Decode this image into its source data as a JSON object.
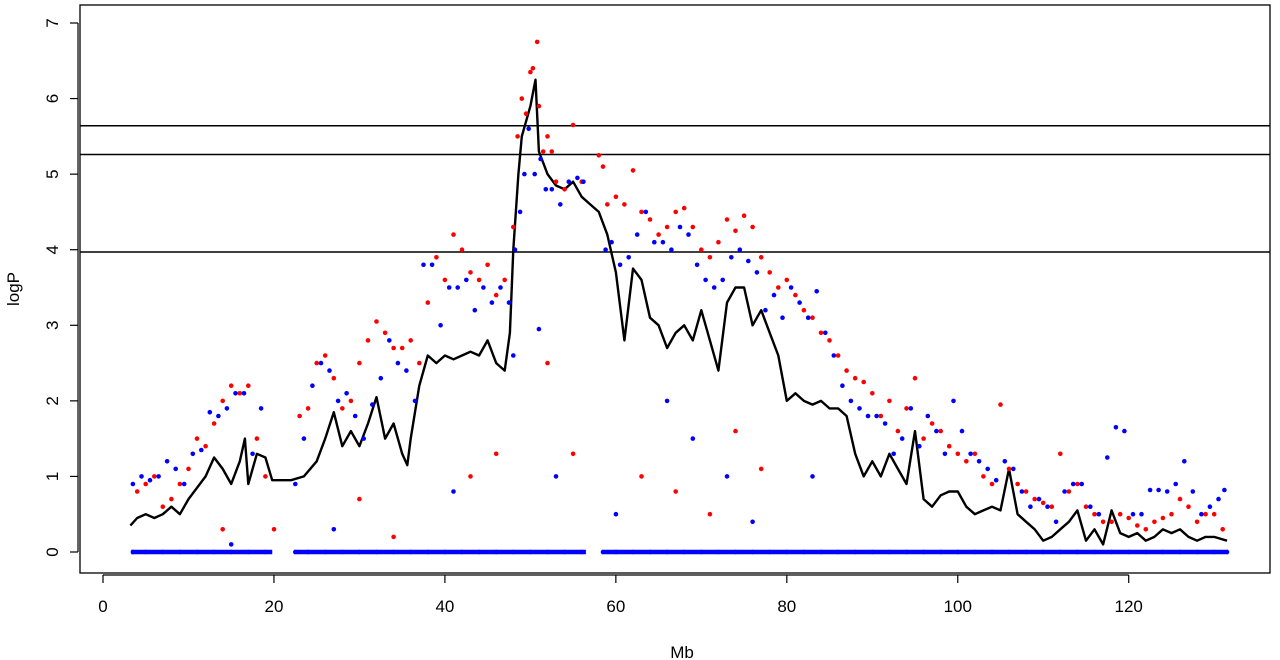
{
  "chart_data": {
    "type": "scatter",
    "title": "",
    "xlabel": "Mb",
    "ylabel": "logP",
    "xlim": [
      0,
      135
    ],
    "ylim": [
      0,
      7
    ],
    "x_ticks": [
      0,
      20,
      40,
      60,
      80,
      100,
      120
    ],
    "y_ticks": [
      0,
      1,
      2,
      3,
      4,
      5,
      6,
      7
    ],
    "x_tick_labels": [
      "0",
      "20",
      "40",
      "60",
      "80",
      "100",
      "120"
    ],
    "y_tick_labels": [
      "0",
      "1",
      "2",
      "3",
      "4",
      "5",
      "6",
      "7"
    ],
    "grid": false,
    "legend": "none",
    "thresholds": [
      5.64,
      5.26,
      3.97
    ],
    "colors": {
      "red_series": "#ff0000",
      "blue_series": "#0000ff",
      "line": "#000000"
    },
    "series": [
      {
        "kind": "line",
        "color": "#000000",
        "x": [
          3.2,
          4,
          5,
          6,
          7,
          8,
          9,
          10,
          11,
          12,
          13,
          14,
          15,
          16,
          16.6,
          17,
          18,
          19,
          19.8,
          22,
          23.5,
          25,
          26,
          27,
          28,
          29,
          30,
          31,
          32,
          33,
          34,
          35,
          35.6,
          36,
          37,
          38,
          39,
          40,
          41,
          42,
          43,
          44,
          45,
          46,
          47,
          47.6,
          48,
          48.6,
          49,
          50,
          50.6,
          51,
          52,
          53,
          54,
          55,
          56,
          57,
          58,
          59,
          60,
          61,
          62,
          63,
          64,
          65,
          66,
          67,
          68,
          69,
          70,
          71,
          72,
          73,
          74,
          75,
          76,
          77,
          78,
          79,
          80,
          81,
          82,
          83,
          84,
          85,
          86,
          87,
          88,
          89,
          90,
          91,
          92,
          93,
          94,
          95,
          96,
          97,
          98,
          99,
          100,
          101,
          102,
          103,
          104,
          105,
          106,
          107,
          108,
          109,
          110,
          111,
          112,
          113,
          114,
          115,
          116,
          117,
          118,
          119,
          120,
          121,
          122,
          123,
          124,
          125,
          126,
          127,
          128,
          129,
          130,
          131.5
        ],
        "y": [
          0.35,
          0.45,
          0.5,
          0.45,
          0.5,
          0.6,
          0.5,
          0.7,
          0.85,
          1.0,
          1.25,
          1.1,
          0.9,
          1.2,
          1.5,
          0.9,
          1.3,
          1.25,
          0.95,
          0.95,
          1.0,
          1.2,
          1.5,
          1.85,
          1.4,
          1.6,
          1.4,
          1.7,
          2.05,
          1.5,
          1.7,
          1.3,
          1.15,
          1.5,
          2.2,
          2.6,
          2.5,
          2.6,
          2.55,
          2.6,
          2.65,
          2.6,
          2.8,
          2.5,
          2.4,
          2.9,
          4.0,
          5.0,
          5.5,
          5.9,
          6.25,
          5.3,
          5.0,
          4.85,
          4.8,
          4.9,
          4.7,
          4.6,
          4.5,
          4.2,
          3.7,
          2.8,
          3.75,
          3.6,
          3.1,
          3.0,
          2.7,
          2.9,
          3.0,
          2.8,
          3.2,
          2.8,
          2.4,
          3.3,
          3.5,
          3.5,
          3.0,
          3.2,
          2.9,
          2.6,
          2.0,
          2.1,
          2.0,
          1.95,
          2.0,
          1.9,
          1.9,
          1.8,
          1.3,
          1.0,
          1.2,
          1.0,
          1.3,
          1.1,
          0.9,
          1.6,
          0.7,
          0.6,
          0.75,
          0.8,
          0.8,
          0.6,
          0.5,
          0.55,
          0.6,
          0.55,
          1.1,
          0.5,
          0.4,
          0.3,
          0.15,
          0.2,
          0.3,
          0.4,
          0.55,
          0.15,
          0.3,
          0.1,
          0.55,
          0.25,
          0.2,
          0.25,
          0.15,
          0.2,
          0.3,
          0.25,
          0.3,
          0.2,
          0.15,
          0.2,
          0.2,
          0.15
        ]
      },
      {
        "kind": "points",
        "color": "#ff0000",
        "x": [
          4,
          5,
          6,
          7,
          8,
          9,
          10,
          11,
          12,
          13,
          14,
          15,
          16,
          17,
          18,
          19,
          23,
          24,
          25,
          26,
          27,
          28,
          29,
          30,
          31,
          32,
          33,
          34,
          35,
          36,
          37,
          38,
          39,
          40,
          41,
          42,
          43,
          44,
          45,
          46,
          47,
          48,
          48.5,
          49,
          49.5,
          50,
          50.3,
          50.8,
          51,
          51.5,
          52,
          52.5,
          53,
          54,
          55,
          56,
          58,
          58.5,
          59,
          60,
          61,
          62,
          63,
          64,
          65,
          66,
          67,
          68,
          69,
          70,
          71,
          72,
          73,
          74,
          75,
          76,
          77,
          78,
          79,
          80,
          81,
          82,
          83,
          84,
          85,
          86,
          87,
          88,
          89,
          90,
          91,
          92,
          93,
          94,
          95,
          96,
          97,
          98,
          99,
          100,
          101,
          102,
          103,
          104,
          105,
          106,
          107,
          108,
          109,
          110,
          111,
          112,
          113,
          114,
          115,
          116,
          117,
          118,
          119,
          120,
          121,
          122,
          123,
          124,
          125,
          126,
          127,
          128,
          129,
          130,
          131,
          52,
          55,
          63,
          67,
          71,
          74,
          77,
          14,
          34,
          43,
          46,
          30,
          20
        ],
        "y": [
          0.8,
          0.9,
          1.0,
          0.6,
          0.7,
          0.9,
          1.1,
          1.5,
          1.4,
          1.7,
          2.0,
          2.2,
          2.1,
          2.2,
          1.5,
          1.0,
          1.8,
          1.9,
          2.5,
          2.6,
          2.3,
          1.9,
          2.0,
          2.5,
          2.8,
          3.05,
          2.9,
          2.7,
          2.7,
          2.8,
          2.5,
          3.3,
          3.9,
          3.6,
          4.2,
          4.0,
          3.7,
          3.6,
          3.8,
          3.4,
          3.6,
          4.3,
          5.5,
          6.0,
          5.8,
          6.35,
          6.4,
          6.75,
          5.9,
          5.3,
          5.5,
          5.3,
          4.9,
          4.8,
          5.65,
          4.9,
          5.25,
          5.1,
          4.6,
          4.7,
          4.6,
          5.05,
          4.5,
          4.4,
          4.2,
          4.3,
          4.5,
          4.55,
          4.3,
          4.0,
          3.9,
          4.1,
          4.4,
          4.25,
          4.45,
          4.3,
          3.9,
          3.7,
          3.5,
          3.6,
          3.4,
          3.2,
          3.1,
          2.9,
          2.8,
          2.6,
          2.4,
          2.3,
          2.25,
          2.1,
          1.8,
          2.0,
          1.6,
          1.9,
          2.3,
          1.5,
          1.7,
          1.6,
          1.4,
          1.3,
          1.2,
          1.3,
          1.0,
          0.9,
          1.95,
          1.1,
          0.9,
          0.8,
          0.7,
          0.65,
          0.6,
          1.3,
          0.8,
          0.9,
          0.6,
          0.5,
          0.4,
          0.4,
          0.5,
          0.45,
          0.35,
          0.3,
          0.4,
          0.45,
          0.5,
          0.7,
          0.6,
          0.4,
          0.5,
          0.5,
          0.3,
          2.5,
          1.3,
          1.0,
          0.8,
          0.5,
          1.6,
          1.1,
          0.3,
          0.2,
          1.0,
          1.3,
          0.7,
          0.3
        ]
      },
      {
        "kind": "points",
        "color": "#0000ff",
        "x": [
          3.5,
          4.5,
          5.5,
          6.5,
          7.5,
          8.5,
          9.5,
          10.5,
          11.5,
          12.5,
          13.5,
          14.5,
          15.5,
          16.5,
          17.5,
          18.5,
          22.5,
          23.5,
          24.5,
          25.5,
          26.5,
          27.5,
          28.5,
          29.5,
          30.5,
          31.5,
          32.5,
          33.5,
          34.5,
          35.5,
          36.5,
          37.5,
          38.5,
          39.5,
          40.5,
          41.5,
          42.5,
          43.5,
          44.5,
          45.5,
          46.5,
          47.5,
          48.2,
          48.8,
          49.3,
          49.8,
          50.5,
          51.2,
          51.8,
          52.5,
          53.5,
          54.5,
          55.5,
          56.2,
          58.8,
          59.5,
          60.5,
          61.5,
          62.5,
          63.5,
          64.5,
          65.5,
          66.5,
          67.5,
          68.5,
          69.5,
          70.5,
          71.5,
          72.5,
          73.5,
          74.5,
          75.5,
          76.5,
          77.5,
          78.5,
          79.5,
          80.5,
          81.5,
          82.5,
          83.5,
          84.5,
          85.5,
          86.5,
          87.5,
          88.5,
          89.5,
          90.5,
          91.5,
          92.5,
          93.5,
          94.5,
          95.5,
          96.5,
          97.5,
          98.5,
          99.5,
          100.5,
          101.5,
          102.5,
          103.5,
          104.5,
          105.5,
          106.5,
          107.5,
          108.5,
          109.5,
          110.5,
          111.5,
          112.5,
          113.5,
          114.5,
          115.5,
          116.5,
          117.5,
          118.5,
          119.5,
          120.5,
          121.5,
          122.5,
          123.5,
          124.5,
          125.5,
          126.5,
          127.5,
          128.5,
          129.5,
          130.5,
          131.2,
          51,
          53,
          60,
          66,
          69,
          73,
          76,
          83,
          15,
          27,
          41,
          48
        ],
        "y": [
          0.9,
          1.0,
          0.95,
          1.0,
          1.2,
          1.1,
          0.9,
          1.3,
          1.35,
          1.85,
          1.8,
          1.9,
          2.1,
          2.1,
          1.3,
          1.9,
          0.9,
          1.5,
          2.2,
          2.5,
          2.4,
          2.0,
          2.1,
          1.8,
          1.5,
          1.95,
          2.3,
          2.8,
          2.5,
          2.4,
          2.0,
          3.8,
          3.8,
          3.0,
          3.5,
          3.5,
          3.6,
          3.2,
          3.5,
          3.3,
          3.5,
          3.3,
          4.0,
          4.5,
          5.0,
          5.6,
          5.0,
          5.2,
          4.8,
          4.8,
          4.6,
          4.9,
          4.95,
          4.9,
          4.0,
          4.1,
          3.8,
          3.9,
          4.2,
          4.5,
          4.1,
          4.1,
          4.0,
          4.3,
          4.2,
          3.8,
          3.6,
          3.5,
          3.6,
          3.9,
          4.0,
          3.85,
          3.7,
          3.2,
          3.4,
          3.1,
          3.5,
          3.3,
          3.1,
          3.45,
          2.9,
          2.6,
          2.2,
          2.0,
          1.9,
          1.8,
          1.8,
          1.7,
          1.3,
          1.5,
          1.9,
          1.4,
          1.8,
          1.6,
          1.3,
          2.0,
          1.6,
          1.3,
          1.2,
          1.1,
          0.95,
          1.2,
          1.1,
          0.8,
          0.6,
          0.7,
          0.6,
          0.4,
          0.8,
          0.9,
          0.9,
          0.6,
          0.5,
          1.25,
          1.65,
          1.6,
          0.5,
          0.5,
          0.82,
          0.82,
          0.8,
          0.9,
          1.2,
          0.8,
          0.5,
          0.6,
          0.7,
          0.82,
          2.95,
          1.0,
          0.5,
          2.0,
          1.5,
          1.0,
          0.4,
          1.0,
          0.1,
          0.3,
          0.8,
          2.6
        ]
      },
      {
        "kind": "baseline-points",
        "color": "#0000ff",
        "x": [
          3.5,
          5,
          7,
          9,
          11,
          13,
          15,
          17,
          19,
          22.5,
          24,
          26,
          28,
          30,
          32,
          34,
          36,
          38,
          40,
          42,
          44,
          46,
          48,
          50,
          52,
          54,
          56,
          58.5,
          60,
          62,
          64,
          66,
          68,
          70,
          72,
          74,
          76,
          78,
          80,
          82,
          84,
          86,
          88,
          90,
          92,
          94,
          96,
          98,
          100,
          102,
          104,
          106,
          108,
          110,
          112,
          114,
          116,
          118,
          120,
          122,
          124,
          126,
          128,
          130,
          131.5
        ],
        "y": [
          0,
          0,
          0,
          0,
          0,
          0,
          0,
          0,
          0,
          0,
          0,
          0,
          0,
          0,
          0,
          0,
          0,
          0,
          0,
          0,
          0,
          0,
          0,
          0,
          0,
          0,
          0,
          0,
          0,
          0,
          0,
          0,
          0,
          0,
          0,
          0,
          0,
          0,
          0,
          0,
          0,
          0,
          0,
          0,
          0,
          0,
          0,
          0,
          0,
          0,
          0,
          0,
          0,
          0,
          0,
          0,
          0,
          0,
          0,
          0,
          0,
          0,
          0,
          0,
          0
        ]
      }
    ]
  }
}
